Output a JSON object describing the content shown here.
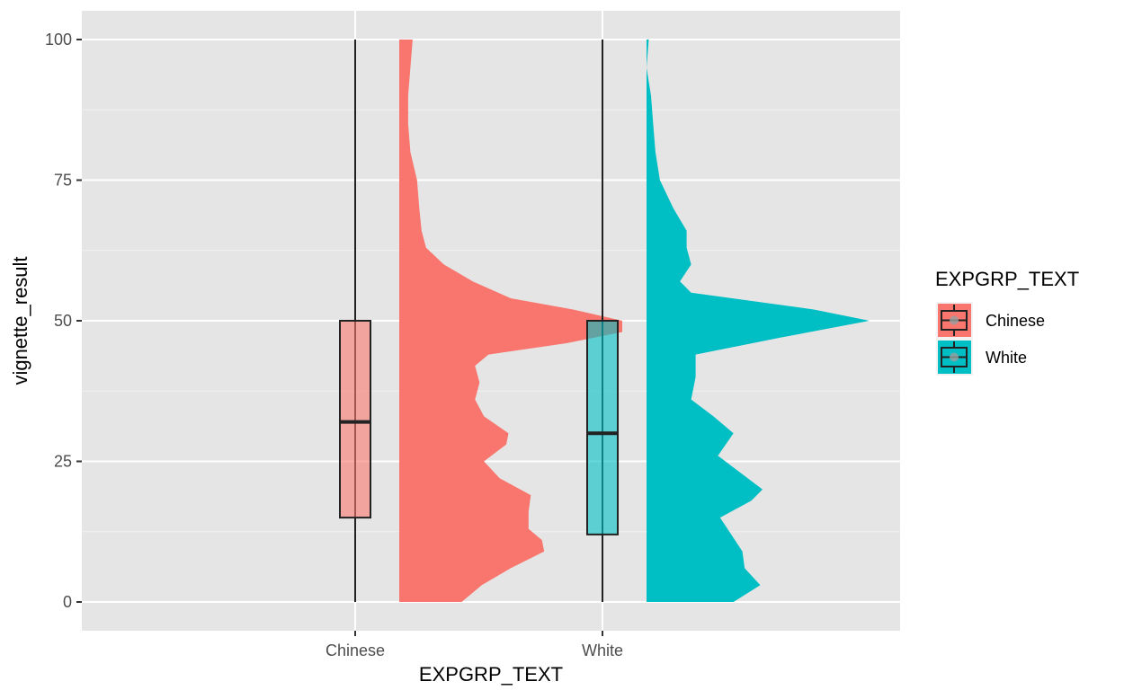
{
  "chart_data": {
    "type": "raincloud",
    "xlabel": "EXPGRP_TEXT",
    "ylabel": "vignette_result",
    "ylim": [
      -5,
      105
    ],
    "y_ticks": [
      0,
      25,
      50,
      75,
      100
    ],
    "categories": [
      "Chinese",
      "White"
    ],
    "grid": true,
    "legend": {
      "title": "EXPGRP_TEXT",
      "position": "right",
      "entries": [
        {
          "label": "Chinese",
          "color": "#F8766D"
        },
        {
          "label": "White",
          "color": "#00BFC4"
        }
      ]
    },
    "series": [
      {
        "name": "Chinese",
        "color": "#F8766D",
        "boxplot": {
          "min": 0,
          "q1": 15,
          "median": 32,
          "q3": 50,
          "max": 100
        },
        "density": [
          [
            0,
            0.28
          ],
          [
            3,
            0.37
          ],
          [
            6,
            0.5
          ],
          [
            9,
            0.65
          ],
          [
            11,
            0.64
          ],
          [
            13,
            0.58
          ],
          [
            16,
            0.58
          ],
          [
            19,
            0.59
          ],
          [
            22,
            0.45
          ],
          [
            25,
            0.38
          ],
          [
            28,
            0.48
          ],
          [
            30,
            0.49
          ],
          [
            33,
            0.38
          ],
          [
            36,
            0.34
          ],
          [
            39,
            0.36
          ],
          [
            42,
            0.34
          ],
          [
            44,
            0.4
          ],
          [
            46,
            0.75
          ],
          [
            48,
            1.0
          ],
          [
            50,
            1.0
          ],
          [
            52,
            0.78
          ],
          [
            54,
            0.5
          ],
          [
            57,
            0.33
          ],
          [
            60,
            0.2
          ],
          [
            63,
            0.12
          ],
          [
            66,
            0.1
          ],
          [
            70,
            0.09
          ],
          [
            75,
            0.08
          ],
          [
            80,
            0.05
          ],
          [
            85,
            0.04
          ],
          [
            90,
            0.04
          ],
          [
            95,
            0.05
          ],
          [
            100,
            0.06
          ]
        ]
      },
      {
        "name": "White",
        "color": "#00BFC4",
        "boxplot": {
          "min": 0,
          "q1": 12,
          "median": 30,
          "q3": 50,
          "max": 100
        },
        "density": [
          [
            0,
            0.39
          ],
          [
            3,
            0.51
          ],
          [
            6,
            0.44
          ],
          [
            9,
            0.43
          ],
          [
            12,
            0.38
          ],
          [
            15,
            0.33
          ],
          [
            18,
            0.47
          ],
          [
            20,
            0.52
          ],
          [
            23,
            0.42
          ],
          [
            26,
            0.32
          ],
          [
            30,
            0.39
          ],
          [
            33,
            0.3
          ],
          [
            36,
            0.2
          ],
          [
            40,
            0.22
          ],
          [
            44,
            0.22
          ],
          [
            47,
            0.6
          ],
          [
            50,
            1.0
          ],
          [
            52,
            0.75
          ],
          [
            55,
            0.2
          ],
          [
            57,
            0.15
          ],
          [
            60,
            0.2
          ],
          [
            63,
            0.18
          ],
          [
            66,
            0.18
          ],
          [
            70,
            0.12
          ],
          [
            75,
            0.06
          ],
          [
            80,
            0.04
          ],
          [
            85,
            0.03
          ],
          [
            90,
            0.02
          ],
          [
            95,
            0.0
          ],
          [
            100,
            0.01
          ]
        ]
      }
    ]
  }
}
